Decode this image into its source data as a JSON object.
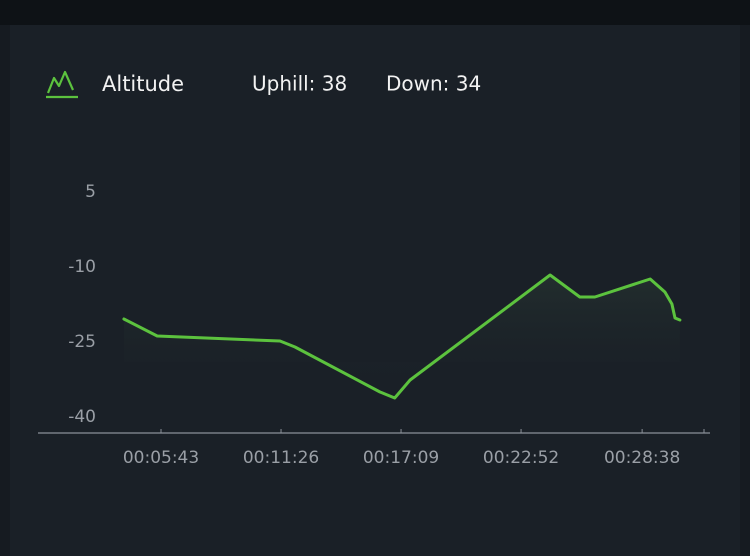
{
  "chart_data": {
    "type": "line",
    "title": "Altitude",
    "uphill": "Uphill: 38",
    "down": "Down: 34",
    "x": [
      237,
      332,
      683,
      726,
      969,
      1011,
      1055,
      1455,
      1540,
      1583,
      1741,
      1783,
      1803,
      1812,
      1826
    ],
    "series": [
      {
        "color": "#5cc23e",
        "values": [
          -20.4,
          -23.8,
          -24.8,
          -26,
          -35,
          -36.2,
          -32.6,
          -11.6,
          -16,
          -16,
          -12.4,
          -15,
          -17.4,
          -20.2,
          -20.6
        ]
      }
    ],
    "xlim": [
      0,
      1912
    ],
    "xticks": [
      {
        "value": 343,
        "label": "00:05:43"
      },
      {
        "value": 686,
        "label": "00:11:26"
      },
      {
        "value": 1029,
        "label": "00:17:09"
      },
      {
        "value": 1372,
        "label": "00:22:52"
      },
      {
        "value": 1718,
        "label": "00:28:38"
      }
    ],
    "ylim": [
      -43.2,
      8
    ],
    "yticks": [
      5,
      -10,
      -25,
      -40
    ]
  }
}
